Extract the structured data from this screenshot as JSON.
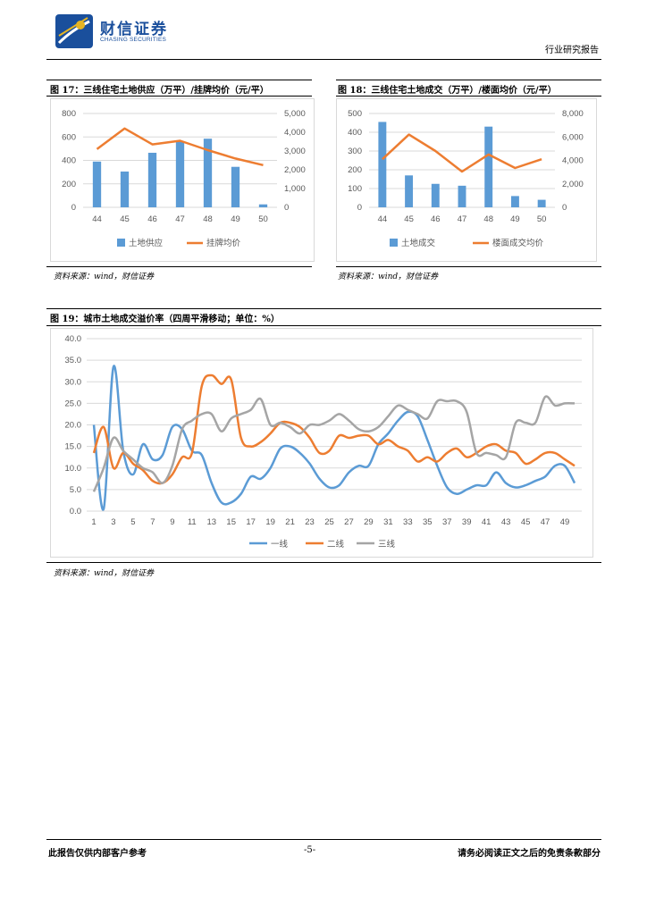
{
  "header": {
    "logo_cn": "财信证券",
    "logo_en": "CHASING SECURITIES",
    "report_type": "行业研究报告"
  },
  "figures": {
    "fig17": {
      "title": "图 17：三线住宅土地供应（万平）/挂牌均价（元/平）",
      "source": "资料来源：wind，财信证券"
    },
    "fig18": {
      "title": "图 18：三线住宅土地成交（万平）/楼面均价（元/平）",
      "source": "资料来源：wind，财信证券"
    },
    "fig19": {
      "title": "图 19：城市土地成交溢价率（四周平滑移动；单位：%）",
      "source": "资料来源：wind，财信证券"
    }
  },
  "colors": {
    "blue": "#5b9bd5",
    "orange": "#ed7d31",
    "gray": "#a5a5a5"
  },
  "chart_data": [
    {
      "id": "fig17",
      "type": "bar+line",
      "categories": [
        "44",
        "45",
        "46",
        "47",
        "48",
        "49",
        "50"
      ],
      "series": [
        {
          "name": "土地供应",
          "kind": "bar",
          "axis": "left",
          "values": [
            390,
            305,
            465,
            560,
            585,
            345,
            25
          ]
        },
        {
          "name": "挂牌均价",
          "kind": "line",
          "axis": "right",
          "values": [
            3100,
            4200,
            3350,
            3550,
            3050,
            2600,
            2250
          ]
        }
      ],
      "y_left": {
        "min": 0,
        "max": 800,
        "ticks": [
          "0",
          "200",
          "400",
          "600",
          "800"
        ]
      },
      "y_right": {
        "min": 0,
        "max": 5000,
        "ticks": [
          "0",
          "1,000",
          "2,000",
          "3,000",
          "4,000",
          "5,000"
        ]
      }
    },
    {
      "id": "fig18",
      "type": "bar+line",
      "categories": [
        "44",
        "45",
        "46",
        "47",
        "48",
        "49",
        "50"
      ],
      "series": [
        {
          "name": "土地成交",
          "kind": "bar",
          "axis": "left",
          "values": [
            455,
            170,
            125,
            115,
            430,
            60,
            40
          ]
        },
        {
          "name": "楼面成交均价",
          "kind": "line",
          "axis": "right",
          "values": [
            4100,
            6200,
            4800,
            3050,
            4500,
            3350,
            4100
          ]
        }
      ],
      "y_left": {
        "min": 0,
        "max": 500,
        "ticks": [
          "0",
          "100",
          "200",
          "300",
          "400",
          "500"
        ]
      },
      "y_right": {
        "min": 0,
        "max": 8000,
        "ticks": [
          "0",
          "2,000",
          "4,000",
          "6,000",
          "8,000"
        ]
      }
    },
    {
      "id": "fig19",
      "type": "line",
      "x": [
        1,
        2,
        3,
        4,
        5,
        6,
        7,
        8,
        9,
        10,
        11,
        12,
        13,
        14,
        15,
        16,
        17,
        18,
        19,
        20,
        21,
        22,
        23,
        24,
        25,
        26,
        27,
        28,
        29,
        30,
        31,
        32,
        33,
        34,
        35,
        36,
        37,
        38,
        39,
        40,
        41,
        42,
        43,
        44,
        45,
        46,
        47,
        48,
        49,
        50
      ],
      "x_tick_labels": [
        "1",
        "3",
        "5",
        "7",
        "9",
        "11",
        "13",
        "15",
        "17",
        "19",
        "21",
        "23",
        "25",
        "27",
        "29",
        "31",
        "33",
        "35",
        "37",
        "39",
        "41",
        "43",
        "45",
        "47",
        "49"
      ],
      "series": [
        {
          "name": "一线",
          "values": [
            20.0,
            0.5,
            33.5,
            14.0,
            8.5,
            15.5,
            12.0,
            13.0,
            19.5,
            19.0,
            14.0,
            13.0,
            6.5,
            2.0,
            2.0,
            4.0,
            8.0,
            7.5,
            10.0,
            14.5,
            15.0,
            13.5,
            11.0,
            7.5,
            5.5,
            6.0,
            9.0,
            10.5,
            10.5,
            15.5,
            18.0,
            21.0,
            23.0,
            22.0,
            16.5,
            10.5,
            5.5,
            4.0,
            5.0,
            6.0,
            6.0,
            9.0,
            6.5,
            5.5,
            6.0,
            7.0,
            8.0,
            10.5,
            10.5,
            6.5
          ]
        },
        {
          "name": "二线",
          "values": [
            13.5,
            19.5,
            10.0,
            13.5,
            11.0,
            9.5,
            7.0,
            6.5,
            8.5,
            12.5,
            13.5,
            29.0,
            31.5,
            29.5,
            30.5,
            17.0,
            15.0,
            16.0,
            18.0,
            20.5,
            20.5,
            19.5,
            17.0,
            13.5,
            14.0,
            17.5,
            17.0,
            17.5,
            17.5,
            15.5,
            16.5,
            15.0,
            14.0,
            11.5,
            12.5,
            11.5,
            13.5,
            14.5,
            12.5,
            13.5,
            15.0,
            15.5,
            14.0,
            13.5,
            11.0,
            12.0,
            13.5,
            13.5,
            12.0,
            10.5
          ]
        },
        {
          "name": "三线",
          "values": [
            4.5,
            10.0,
            17.0,
            14.0,
            12.0,
            10.0,
            9.0,
            6.5,
            10.5,
            19.0,
            21.0,
            22.5,
            22.5,
            18.5,
            21.5,
            22.5,
            23.5,
            26.0,
            20.0,
            20.5,
            19.5,
            18.0,
            20.0,
            20.0,
            21.0,
            22.5,
            21.0,
            19.0,
            18.5,
            19.5,
            22.0,
            24.5,
            23.5,
            22.5,
            21.5,
            25.5,
            25.5,
            25.5,
            23.0,
            13.5,
            13.5,
            13.0,
            12.5,
            20.5,
            20.5,
            20.5,
            26.5,
            24.5,
            25.0,
            25.0
          ]
        }
      ],
      "y": {
        "min": 0,
        "max": 40,
        "ticks": [
          "0.0",
          "5.0",
          "10.0",
          "15.0",
          "20.0",
          "25.0",
          "30.0",
          "35.0",
          "40.0"
        ]
      }
    }
  ],
  "footer": {
    "left": "此报告仅供内部客户参考",
    "center": "-5-",
    "right": "请务必阅读正文之后的免责条款部分"
  }
}
